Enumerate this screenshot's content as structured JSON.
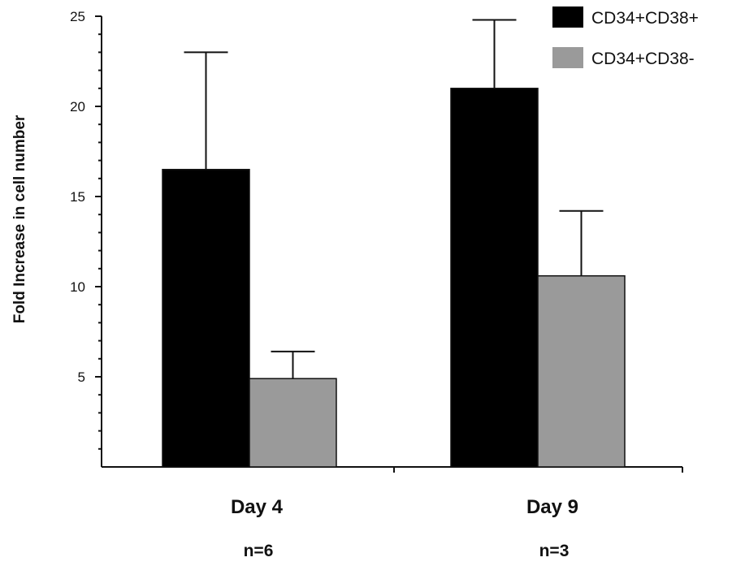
{
  "chart_data": {
    "type": "bar",
    "ylabel": "Fold Increase in cell number",
    "xlabel": "",
    "ylim": [
      0,
      25
    ],
    "yticks": [
      "5",
      "10",
      "15",
      "20",
      "25"
    ],
    "categories": [
      "Day 4",
      "Day 9"
    ],
    "sample_sizes": [
      "n=6",
      "n=3"
    ],
    "series": [
      {
        "name": "CD34+CD38+",
        "color": "#000000",
        "values": [
          16.5,
          21.0
        ],
        "errors": [
          6.5,
          3.8
        ]
      },
      {
        "name": "CD34+CD38-",
        "color": "#9a9a9a",
        "values": [
          4.9,
          10.6
        ],
        "errors": [
          1.5,
          3.6
        ]
      }
    ],
    "legend_position": "top-right",
    "grid": false
  }
}
